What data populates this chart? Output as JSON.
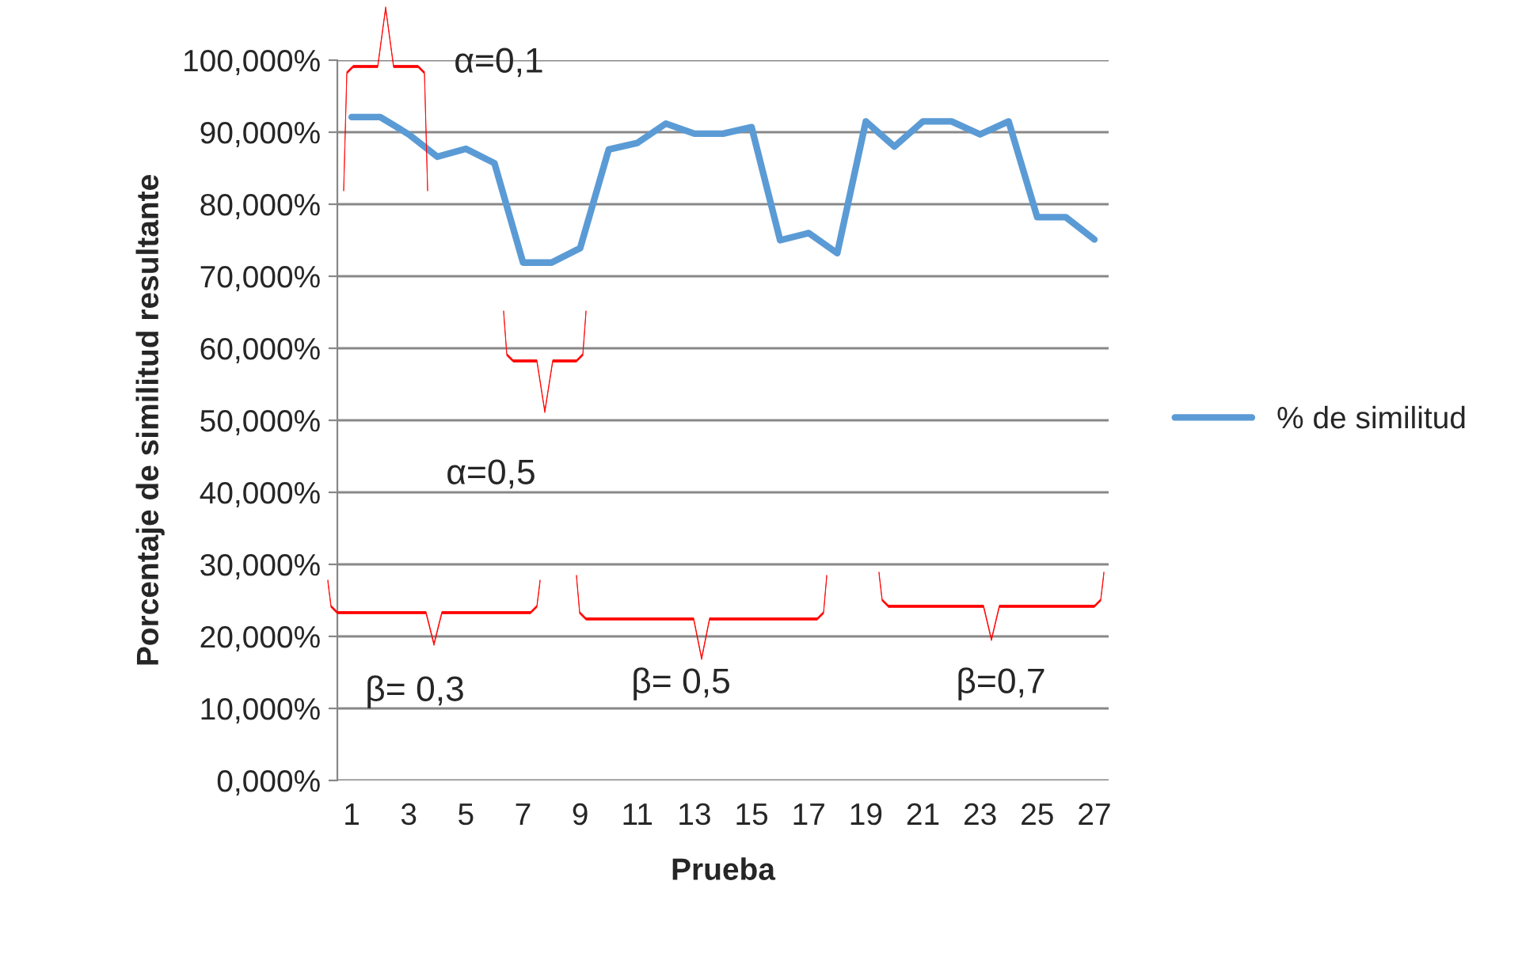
{
  "chart_data": {
    "type": "line",
    "xlabel": "Prueba",
    "ylabel": "Porcentaje de similitud resultante",
    "categories": [
      "1",
      null,
      "3",
      null,
      "5",
      null,
      "7",
      null,
      "9",
      null,
      "11",
      null,
      "13",
      null,
      "15",
      null,
      "17",
      null,
      "19",
      null,
      "21",
      null,
      "23",
      null,
      "25",
      null,
      "27"
    ],
    "series": [
      {
        "name": "% de similitud",
        "color": "#5b9bd5",
        "values": [
          92.1,
          92.1,
          89.7,
          86.6,
          87.7,
          85.7,
          71.9,
          71.9,
          73.9,
          87.6,
          88.5,
          91.2,
          89.8,
          89.8,
          90.7,
          75.0,
          76.0,
          73.2,
          91.5,
          88.0,
          91.5,
          91.5,
          89.7,
          91.5,
          78.2,
          78.2,
          75.1
        ]
      }
    ],
    "ylim": [
      0,
      100
    ],
    "yticks": [
      {
        "value": 0,
        "label": "0,000%"
      },
      {
        "value": 10,
        "label": "10,000%"
      },
      {
        "value": 20,
        "label": "20,000%"
      },
      {
        "value": 30,
        "label": "30,000%"
      },
      {
        "value": 40,
        "label": "40,000%"
      },
      {
        "value": 50,
        "label": "50,000%"
      },
      {
        "value": 60,
        "label": "60,000%"
      },
      {
        "value": 70,
        "label": "70,000%"
      },
      {
        "value": 80,
        "label": "80,000%"
      },
      {
        "value": 90,
        "label": "90,000%"
      },
      {
        "value": 100,
        "label": "100,000%"
      }
    ],
    "annotations": [
      "α=0,1",
      "α=0,5",
      "β= 0,3",
      "β= 0,5",
      "β=0,7"
    ],
    "grid": "y",
    "legend": "right",
    "marker": "none",
    "line_style": "solid"
  }
}
